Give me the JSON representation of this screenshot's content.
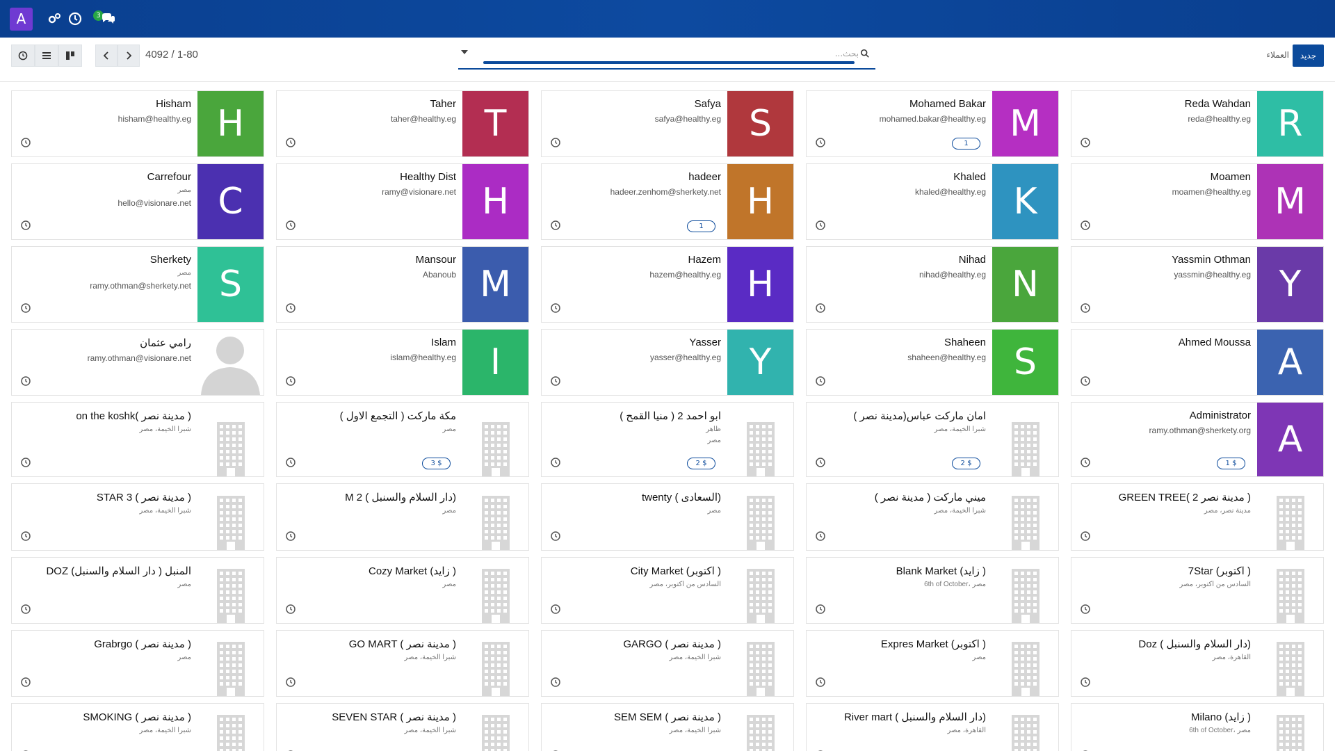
{
  "navbar": {
    "avatar_letter": "A",
    "chat_badge": "3"
  },
  "control_panel": {
    "pager": "4092 / 1-80",
    "search_placeholder": "بحث...",
    "new_button": "جديد",
    "breadcrumb": "العملاء"
  },
  "colors": {
    "navbar": "#0a3f8f",
    "primary": "#0b4a9b"
  },
  "cards": [
    {
      "name": "Hisham",
      "lines": [
        "hisham@healthy.eg"
      ],
      "avatar": "H",
      "color": "#4aa63c"
    },
    {
      "name": "Taher",
      "lines": [
        "taher@healthy.eg"
      ],
      "avatar": "T",
      "color": "#b32e52"
    },
    {
      "name": "Safya",
      "lines": [
        "safya@healthy.eg"
      ],
      "avatar": "S",
      "color": "#b0383d"
    },
    {
      "name": "Mohamed Bakar",
      "lines": [
        "mohamed.bakar@healthy.eg"
      ],
      "avatar": "M",
      "color": "#b52fc2",
      "badge": "1"
    },
    {
      "name": "Reda Wahdan",
      "lines": [
        "reda@healthy.eg"
      ],
      "avatar": "R",
      "color": "#2ebea5"
    },
    {
      "name": "Carrefour",
      "lines": [
        "مصر",
        "hello@visionare.net"
      ],
      "avatar": "C",
      "color": "#4b30b0"
    },
    {
      "name": "Healthy Dist",
      "lines": [
        "ramy@visionare.net"
      ],
      "avatar": "H",
      "color": "#ab2cc4"
    },
    {
      "name": "hadeer",
      "lines": [
        "hadeer.zenhom@sherkety.net"
      ],
      "avatar": "H",
      "color": "#c0752a",
      "badge": "1"
    },
    {
      "name": "Khaled",
      "lines": [
        "khaled@healthy.eg"
      ],
      "avatar": "K",
      "color": "#2e93c0"
    },
    {
      "name": "Moamen",
      "lines": [
        "moamen@healthy.eg"
      ],
      "avatar": "M",
      "color": "#ad33b6"
    },
    {
      "name": "Sherkety",
      "lines": [
        "مصر",
        "ramy.othman@sherkety.net"
      ],
      "avatar": "S",
      "color": "#2fc196"
    },
    {
      "name": "Mansour",
      "lines": [
        "Abanoub"
      ],
      "avatar": "M",
      "color": "#3b5cad"
    },
    {
      "name": "Hazem",
      "lines": [
        "hazem@healthy.eg"
      ],
      "avatar": "H",
      "color": "#5a2bc4"
    },
    {
      "name": "Nihad",
      "lines": [
        "nihad@healthy.eg"
      ],
      "avatar": "N",
      "color": "#4aa63c"
    },
    {
      "name": "Yassmin Othman",
      "lines": [
        "yassmin@healthy.eg"
      ],
      "avatar": "Y",
      "color": "#6a3aa8"
    },
    {
      "name": "رامي عثمان",
      "lines": [
        "ramy.othman@visionare.net"
      ],
      "type": "person"
    },
    {
      "name": "Islam",
      "lines": [
        "islam@healthy.eg"
      ],
      "avatar": "I",
      "color": "#2bb56a"
    },
    {
      "name": "Yasser",
      "lines": [
        "yasser@healthy.eg"
      ],
      "avatar": "Y",
      "color": "#31b3ae"
    },
    {
      "name": "Shaheen",
      "lines": [
        "shaheen@healthy.eg"
      ],
      "avatar": "S",
      "color": "#3fb53c"
    },
    {
      "name": "Ahmed Moussa",
      "lines": [],
      "avatar": "A",
      "color": "#3b63b0"
    },
    {
      "name": "on the koshk( مدينة نصر )",
      "lines": [
        "شبرا الخيمة، مصر"
      ],
      "type": "building"
    },
    {
      "name": "مكة ماركت ( التجمع الاول )",
      "lines": [
        "مصر"
      ],
      "type": "building",
      "badge": "3 $"
    },
    {
      "name": "ابو احمد 2 ( منيا القمح )",
      "lines": [
        "ظاهر",
        "مصر"
      ],
      "type": "building",
      "badge": "2 $"
    },
    {
      "name": "امان ماركت عباس(مدينة نصر )",
      "lines": [
        "شبرا الخيمة، مصر"
      ],
      "type": "building",
      "badge": "2 $"
    },
    {
      "name": "Administrator",
      "lines": [
        "ramy.othman@sherkety.org"
      ],
      "avatar": "A",
      "color": "#7e36b5",
      "badge": "1 $"
    },
    {
      "name": "STAR 3 ( مدينة نصر )",
      "lines": [
        "شبرا الخيمة، مصر"
      ],
      "type": "building"
    },
    {
      "name": "M 2 ( دار السلام والسنبل)",
      "lines": [
        "مصر"
      ],
      "type": "building"
    },
    {
      "name": "twenty ( السعادى)",
      "lines": [
        "مصر"
      ],
      "type": "building"
    },
    {
      "name": "( ميني ماركت ( مدينة نصر",
      "lines": [
        "شبرا الخيمة، مصر"
      ],
      "type": "building"
    },
    {
      "name": "GREEN TREE( مدينة نصر 2 )",
      "lines": [
        "مدينة نصر، مصر"
      ],
      "type": "building"
    },
    {
      "name": "DOZ المنبل ( دار السلام والسنبل)",
      "lines": [
        "مصر"
      ],
      "type": "building"
    },
    {
      "name": "Cozy Market (زايد )",
      "lines": [
        "مصر"
      ],
      "type": "building"
    },
    {
      "name": "City Market (اكتوبر )",
      "lines": [
        "السادس من أكتوبر، مصر"
      ],
      "type": "building"
    },
    {
      "name": "Blank Market (زايد )",
      "lines": [
        "6th of October، مصر"
      ],
      "type": "building"
    },
    {
      "name": "7Star (اكتوبر )",
      "lines": [
        "السادس من أكتوبر، مصر"
      ],
      "type": "building"
    },
    {
      "name": "Grabrgo ( مدينة نصر )",
      "lines": [
        "مصر"
      ],
      "type": "building"
    },
    {
      "name": "GO MART ( مدينة نصر )",
      "lines": [
        "شبرا الخيمة، مصر"
      ],
      "type": "building"
    },
    {
      "name": "GARGO ( مدينة نصر )",
      "lines": [
        "شبرا الخيمة، مصر"
      ],
      "type": "building"
    },
    {
      "name": "Expres Market (اكتوبر )",
      "lines": [
        "مصر"
      ],
      "type": "building"
    },
    {
      "name": "Doz ( دار السلام والسنبل)",
      "lines": [
        "القاهرة، مصر"
      ],
      "type": "building"
    },
    {
      "name": "SMOKING ( مدينة نصر )",
      "lines": [
        "شبرا الخيمة، مصر"
      ],
      "type": "building"
    },
    {
      "name": "SEVEN STAR ( مدينة نصر )",
      "lines": [
        "شبرا الخيمة، مصر"
      ],
      "type": "building"
    },
    {
      "name": "SEM SEM ( مدينة نصر )",
      "lines": [
        "شبرا الخيمة، مصر"
      ],
      "type": "building"
    },
    {
      "name": "River mart ( دار السلام والسنبل)",
      "lines": [
        "القاهرة، مصر"
      ],
      "type": "building"
    },
    {
      "name": "Milano (زايد )",
      "lines": [
        "6th of October، مصر"
      ],
      "type": "building"
    }
  ]
}
